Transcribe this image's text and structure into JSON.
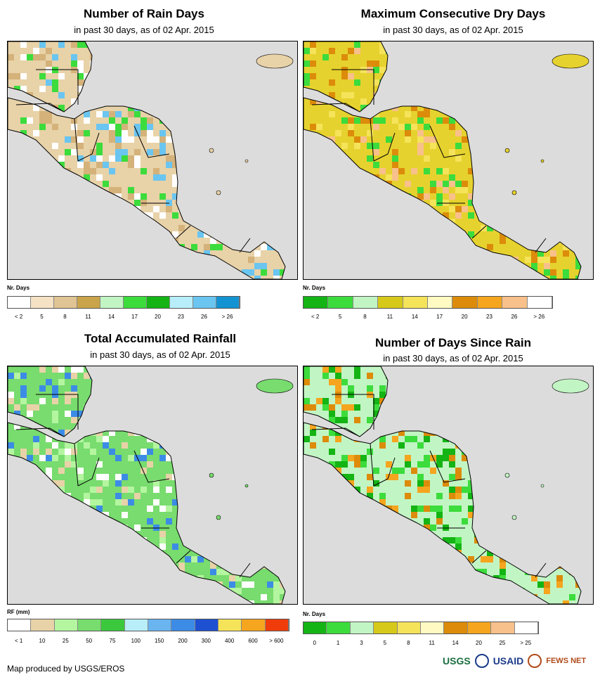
{
  "panels": [
    {
      "id": "rain-days",
      "title": "Number of Rain Days",
      "subtitle": "in past 30 days, as of 02 Apr. 2015",
      "legend_label": "Nr. Days",
      "legend_colors": [
        "#ffffff",
        "#f5e2c4",
        "#e0c493",
        "#c9a44a",
        "#c2f5c4",
        "#3cdc3c",
        "#14b414",
        "#b8eefa",
        "#6ac5f0",
        "#1493d2"
      ],
      "legend_ticks": [
        "< 2",
        "5",
        "8",
        "11",
        "14",
        "17",
        "20",
        "23",
        "26",
        "> 26"
      ],
      "map_base": "#e8d2a8",
      "map_accents": [
        "#ffffff",
        "#d4b27a",
        "#3cdc3c",
        "#6ac5f0"
      ]
    },
    {
      "id": "dry-days",
      "title": "Maximum Consecutive Dry Days",
      "subtitle": "in past 30 days, as of 02 Apr. 2015",
      "legend_label": "Nr. Days",
      "legend_colors": [
        "#14b414",
        "#3cdc3c",
        "#c2f5c4",
        "#d7c91a",
        "#f5e35a",
        "#fffac2",
        "#dc8c0a",
        "#f5a51e",
        "#f8c08a",
        "#ffffff"
      ],
      "legend_ticks": [
        "< 2",
        "5",
        "8",
        "11",
        "14",
        "17",
        "20",
        "23",
        "26",
        "> 26"
      ],
      "map_base": "#e6d22e",
      "map_accents": [
        "#f5e35a",
        "#dc8c0a",
        "#3cdc3c",
        "#f8c08a"
      ]
    },
    {
      "id": "rainfall",
      "title": "Total Accumulated Rainfall",
      "subtitle": "in past 30 days, as of 02 Apr. 2015",
      "legend_label": "RF (mm)",
      "legend_colors": [
        "#ffffff",
        "#e8d2a8",
        "#b4f5a0",
        "#78dc6e",
        "#3cc83c",
        "#b8eefa",
        "#6ab4f0",
        "#3c8ce6",
        "#1e50d2",
        "#f5e35a",
        "#f5a51e",
        "#f03c0a"
      ],
      "legend_ticks": [
        "< 1",
        "10",
        "25",
        "50",
        "75",
        "100",
        "150",
        "200",
        "300",
        "400",
        "600",
        "> 600"
      ],
      "map_base": "#78dc6e",
      "map_accents": [
        "#b4f5a0",
        "#3c8ce6",
        "#e8d2a8",
        "#ffffff"
      ]
    },
    {
      "id": "days-since-rain",
      "title": "Number of Days Since Rain",
      "subtitle": "in past 30 days, as of 02 Apr. 2015",
      "legend_label": "Nr. Days",
      "legend_colors": [
        "#14b414",
        "#3cdc3c",
        "#c2f5c4",
        "#d7c91a",
        "#f5e35a",
        "#fffac2",
        "#dc8c0a",
        "#f5a51e",
        "#f8c08a",
        "#ffffff"
      ],
      "legend_ticks": [
        "0",
        "1",
        "3",
        "5",
        "8",
        "11",
        "14",
        "20",
        "25",
        "> 25"
      ],
      "map_base": "#c2f5c4",
      "map_accents": [
        "#3cdc3c",
        "#f5a51e",
        "#14b414",
        "#dc8c0a"
      ]
    }
  ],
  "credit": "Map produced by USGS/EROS",
  "logos": {
    "usgs": "USGS",
    "usaid": "USAID",
    "fewsnet": "FEWS NET"
  },
  "colors": {
    "sea": "#dcdcdc",
    "border": "#000000"
  }
}
